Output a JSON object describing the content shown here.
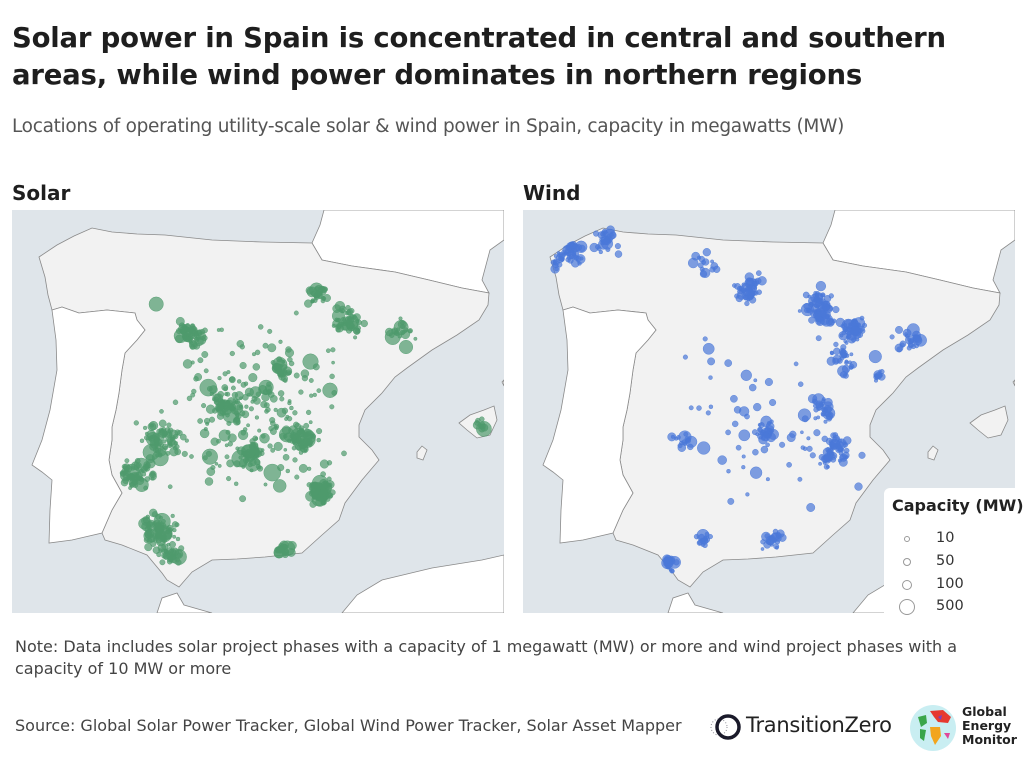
{
  "header": {
    "title": "Solar power in Spain is concentrated in central and southern areas, while wind power dominates in northern regions",
    "subtitle": "Locations of operating utility-scale solar & wind power in Spain, capacity in megawatts (MW)"
  },
  "maps": [
    {
      "label": "Solar",
      "color": "#4e9a6c"
    },
    {
      "label": "Wind",
      "color": "#4a78d8"
    }
  ],
  "legend": {
    "title": "Capacity (MW)",
    "items": [
      {
        "label": "10",
        "value": 10
      },
      {
        "label": "50",
        "value": 50
      },
      {
        "label": "100",
        "value": 100
      },
      {
        "label": "500",
        "value": 500
      }
    ]
  },
  "colors": {
    "sea": "#dfe5ea",
    "land": "#f2f2f2",
    "neighbor_land": "#ffffff",
    "border": "#8a8a8a"
  },
  "footer": {
    "note": "Note: Data includes solar project phases with a capacity of 1 megawatt (MW) or more and wind project phases with a capacity of 10 MW or more",
    "source": "Source: Global Solar Power Tracker, Global Wind Power Tracker, Solar Asset Mapper",
    "logos": [
      {
        "name": "TransitionZero"
      },
      {
        "name": "Global Energy Monitor",
        "lines": [
          "Global",
          "Energy",
          "Monitor"
        ]
      }
    ]
  }
}
